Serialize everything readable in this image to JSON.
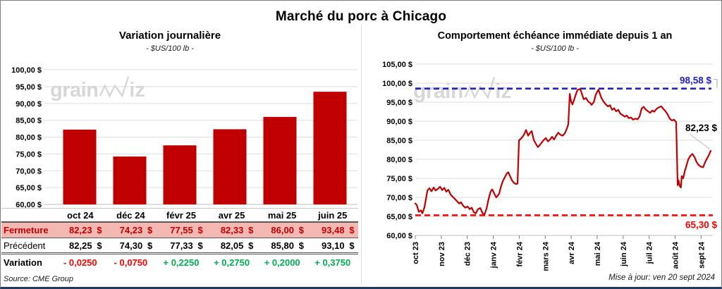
{
  "main_title": "Marché du porc à Chicago",
  "source_note": "Source: CME Group",
  "updated_note": "Mise à jour: ven 20 sept 2024",
  "watermark": {
    "prefix": "grain",
    "suffix": "iz"
  },
  "colors": {
    "series_red": "#C00000",
    "bright_red": "#FF0000",
    "green": "#00B050",
    "blue": "#2222CC",
    "pink_row": "#F4B8B3",
    "gridline": "#DDDDDD",
    "axis": "#BFBFBF"
  },
  "table": {
    "unit": "$",
    "columns": [
      "oct 24",
      "déc 24",
      "févr 25",
      "avr 25",
      "mai 25",
      "juin 25"
    ],
    "rows": [
      {
        "label": "Fermeture",
        "values": [
          "82,23",
          "74,23",
          "77,55",
          "82,33",
          "86,00",
          "93,48"
        ]
      },
      {
        "label": "Précédent",
        "values": [
          "82,25",
          "74,30",
          "77,33",
          "82,05",
          "85,80",
          "93,10"
        ]
      },
      {
        "label": "Variation",
        "values": [
          "- 0,0250",
          "- 0,0750",
          "+ 0,2250",
          "+ 0,2750",
          "+ 0,2000",
          "+ 0,3750"
        ],
        "signs": [
          "neg",
          "neg",
          "pos",
          "pos",
          "pos",
          "pos"
        ]
      }
    ]
  },
  "chart_data": [
    {
      "type": "bar",
      "title": "Variation  journalière",
      "subtitle": "- $US/100 lb -",
      "categories": [
        "oct 24",
        "déc 24",
        "févr 25",
        "avr 25",
        "mai 25",
        "juin 25"
      ],
      "values": [
        82.23,
        74.23,
        77.55,
        82.33,
        86.0,
        93.48
      ],
      "ylabel": "$US/100 lb",
      "ylim": [
        60,
        100
      ],
      "ytick_step": 5,
      "grid": true,
      "bar_color": "#C00000"
    },
    {
      "type": "line",
      "title": "Comportement  échéance immédiate depuis 1 an",
      "subtitle": "- $US/100 lb -",
      "x_categories": [
        "oct 23",
        "nov 23",
        "déc 23",
        "janv 24",
        "févr 24",
        "mars 24",
        "avr 24",
        "mai 24",
        "juin 24",
        "juil 24",
        "août 24",
        "sept 24"
      ],
      "ylabel": "$US/100 lb",
      "ylim": [
        60,
        105
      ],
      "ytick_step": 5,
      "grid": true,
      "line_color": "#C00000",
      "high_line": {
        "value": 98.58,
        "label": "98,58 $",
        "color": "#2222CC"
      },
      "low_line": {
        "value": 65.3,
        "label": "65,30 $",
        "color": "#FF0000"
      },
      "last_label": {
        "value": 82.23,
        "label": "82,23 $",
        "color": "#000000"
      },
      "points": [
        [
          0,
          68.4
        ],
        [
          0.005,
          68
        ],
        [
          0.012,
          66.2
        ],
        [
          0.019,
          66.6
        ],
        [
          0.024,
          65.8
        ],
        [
          0.031,
          67.4
        ],
        [
          0.036,
          69.6
        ],
        [
          0.041,
          71.8
        ],
        [
          0.048,
          72.4
        ],
        [
          0.055,
          71.6
        ],
        [
          0.062,
          72.6
        ],
        [
          0.069,
          71.8
        ],
        [
          0.076,
          72.2
        ],
        [
          0.084,
          72.8
        ],
        [
          0.091,
          71.9
        ],
        [
          0.098,
          72.5
        ],
        [
          0.105,
          71.5
        ],
        [
          0.112,
          72
        ],
        [
          0.119,
          70.8
        ],
        [
          0.126,
          70.2
        ],
        [
          0.134,
          69.6
        ],
        [
          0.141,
          69
        ],
        [
          0.148,
          68.4
        ],
        [
          0.155,
          68.7
        ],
        [
          0.162,
          67.8
        ],
        [
          0.169,
          67.3
        ],
        [
          0.177,
          67.6
        ],
        [
          0.184,
          66.9
        ],
        [
          0.191,
          67.3
        ],
        [
          0.198,
          66.1
        ],
        [
          0.205,
          65.8
        ],
        [
          0.212,
          66.9
        ],
        [
          0.22,
          67.2
        ],
        [
          0.227,
          65.9
        ],
        [
          0.234,
          65.4
        ],
        [
          0.241,
          67
        ],
        [
          0.248,
          69.5
        ],
        [
          0.255,
          71.5
        ],
        [
          0.26,
          72.1
        ],
        [
          0.265,
          71.4
        ],
        [
          0.27,
          70.6
        ],
        [
          0.274,
          70
        ],
        [
          0.279,
          70.4
        ],
        [
          0.284,
          71
        ],
        [
          0.289,
          72.6
        ],
        [
          0.296,
          74.2
        ],
        [
          0.303,
          75.3
        ],
        [
          0.31,
          76.3
        ],
        [
          0.315,
          76.6
        ],
        [
          0.32,
          75.7
        ],
        [
          0.327,
          74.5
        ],
        [
          0.334,
          73.8
        ],
        [
          0.341,
          73.5
        ],
        [
          0.346,
          73.6
        ],
        [
          0.351,
          85
        ],
        [
          0.356,
          85.3
        ],
        [
          0.363,
          85.9
        ],
        [
          0.368,
          86.5
        ],
        [
          0.375,
          87.7
        ],
        [
          0.382,
          86.2
        ],
        [
          0.389,
          87
        ],
        [
          0.394,
          87.4
        ],
        [
          0.401,
          85.1
        ],
        [
          0.408,
          84.1
        ],
        [
          0.415,
          83.2
        ],
        [
          0.422,
          83.8
        ],
        [
          0.43,
          84.6
        ],
        [
          0.434,
          85
        ],
        [
          0.442,
          85.6
        ],
        [
          0.449,
          84.7
        ],
        [
          0.456,
          85.2
        ],
        [
          0.463,
          85.9
        ],
        [
          0.47,
          85.2
        ],
        [
          0.477,
          86.2
        ],
        [
          0.484,
          87
        ],
        [
          0.492,
          86.4
        ],
        [
          0.499,
          86.2
        ],
        [
          0.506,
          86.8
        ],
        [
          0.513,
          88
        ],
        [
          0.518,
          89.2
        ],
        [
          0.523,
          97.2
        ],
        [
          0.527,
          95.3
        ],
        [
          0.532,
          94.4
        ],
        [
          0.537,
          95.5
        ],
        [
          0.542,
          96.7
        ],
        [
          0.549,
          98.2
        ],
        [
          0.558,
          98.5
        ],
        [
          0.566,
          96.7
        ],
        [
          0.57,
          95.8
        ],
        [
          0.578,
          96.1
        ],
        [
          0.585,
          95.2
        ],
        [
          0.592,
          94.8
        ],
        [
          0.597,
          94.3
        ],
        [
          0.604,
          95
        ],
        [
          0.611,
          97
        ],
        [
          0.62,
          98.3
        ],
        [
          0.63,
          96.1
        ],
        [
          0.637,
          95.2
        ],
        [
          0.644,
          94.5
        ],
        [
          0.652,
          93.9
        ],
        [
          0.659,
          94.2
        ],
        [
          0.666,
          93
        ],
        [
          0.673,
          93.4
        ],
        [
          0.68,
          92.6
        ],
        [
          0.687,
          93
        ],
        [
          0.694,
          92
        ],
        [
          0.702,
          91.6
        ],
        [
          0.709,
          91.2
        ],
        [
          0.716,
          91.5
        ],
        [
          0.723,
          90.8
        ],
        [
          0.73,
          91
        ],
        [
          0.737,
          90.4
        ],
        [
          0.745,
          90.7
        ],
        [
          0.752,
          90.5
        ],
        [
          0.759,
          91.2
        ],
        [
          0.766,
          93.3
        ],
        [
          0.773,
          93.8
        ],
        [
          0.78,
          93.1
        ],
        [
          0.788,
          92.6
        ],
        [
          0.795,
          92.2
        ],
        [
          0.802,
          92.8
        ],
        [
          0.809,
          92.5
        ],
        [
          0.816,
          93.2
        ],
        [
          0.823,
          93.6
        ],
        [
          0.833,
          93.9
        ],
        [
          0.84,
          93.2
        ],
        [
          0.847,
          92.6
        ],
        [
          0.854,
          91.8
        ],
        [
          0.862,
          90.6
        ],
        [
          0.869,
          90.2
        ],
        [
          0.876,
          90.4
        ],
        [
          0.883,
          89.8
        ],
        [
          0.888,
          73.2
        ],
        [
          0.891,
          74.5
        ],
        [
          0.895,
          73
        ],
        [
          0.899,
          72.6
        ],
        [
          0.902,
          75.6
        ],
        [
          0.907,
          75
        ],
        [
          0.912,
          76.8
        ],
        [
          0.917,
          78.1
        ],
        [
          0.924,
          80
        ],
        [
          0.931,
          80.9
        ],
        [
          0.938,
          81.4
        ],
        [
          0.945,
          80.6
        ],
        [
          0.952,
          79.3
        ],
        [
          0.959,
          78.5
        ],
        [
          0.966,
          78.1
        ],
        [
          0.974,
          77.9
        ],
        [
          0.981,
          79.2
        ],
        [
          0.988,
          80.3
        ],
        [
          0.993,
          81
        ],
        [
          1,
          82.23
        ]
      ]
    }
  ]
}
